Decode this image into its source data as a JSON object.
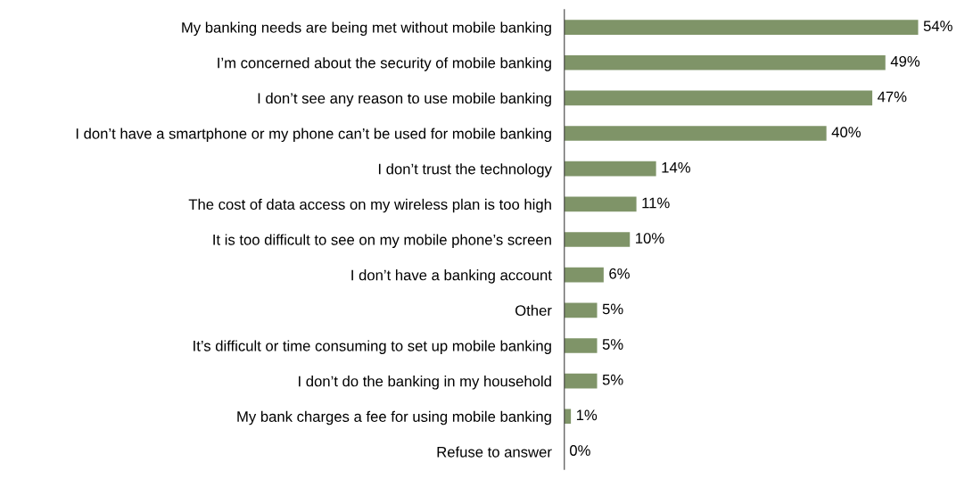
{
  "chart_data": {
    "type": "bar",
    "orientation": "horizontal",
    "categories": [
      "My banking needs are being met without mobile banking",
      "I’m concerned about the security of mobile banking",
      "I don’t see any reason to use mobile banking",
      "I don’t have a smartphone or my phone can’t be used for mobile banking",
      "I don’t trust the technology",
      "The cost of data access on my wireless plan is too high",
      "It is too difficult to see on my mobile phone’s screen",
      "I don’t have a banking account",
      "Other",
      "It’s difficult or time consuming to set up mobile banking",
      "I don’t do the banking in my household",
      "My bank charges a fee for using mobile banking",
      "Refuse to answer"
    ],
    "values": [
      54,
      49,
      47,
      40,
      14,
      11,
      10,
      6,
      5,
      5,
      5,
      1,
      0
    ],
    "value_labels": [
      "54%",
      "49%",
      "47%",
      "40%",
      "14%",
      "11%",
      "10%",
      "6%",
      "5%",
      "5%",
      "5%",
      "1%",
      "0%"
    ],
    "color": "#7f9468",
    "tick_labels": "y",
    "grid": false,
    "legend": false
  }
}
